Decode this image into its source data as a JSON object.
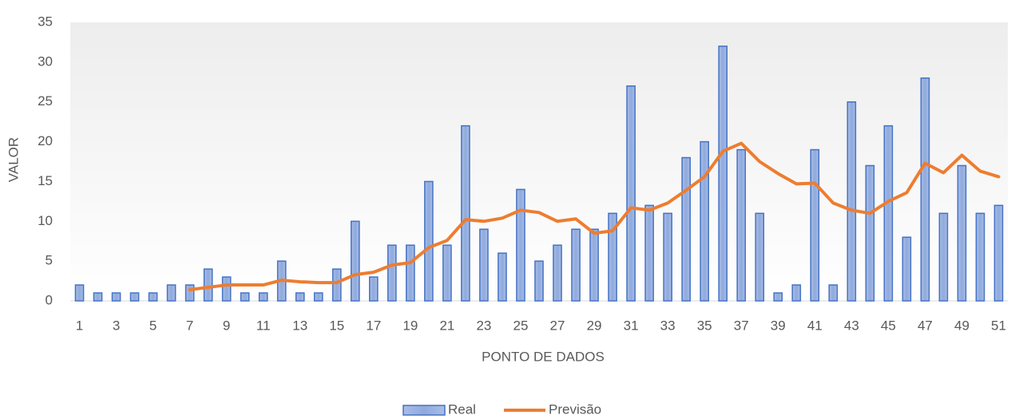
{
  "chart_data": {
    "type": "bar",
    "x_label": "PONTO DE DADOS",
    "y_label": "VALOR",
    "categories": [
      1,
      null,
      3,
      null,
      5,
      null,
      7,
      null,
      9,
      null,
      11,
      null,
      13,
      null,
      15,
      null,
      17,
      null,
      19,
      null,
      21,
      null,
      23,
      null,
      25,
      null,
      27,
      null,
      29,
      null,
      31,
      null,
      33,
      null,
      35,
      null,
      37,
      null,
      39,
      null,
      41,
      null,
      43,
      null,
      45,
      null,
      47,
      null,
      49,
      null,
      51
    ],
    "series": [
      {
        "name": "Real",
        "type": "bar",
        "color": "#4472c4",
        "values": [
          2,
          1,
          1,
          1,
          1,
          2,
          2,
          4,
          3,
          1,
          1,
          5,
          1,
          1,
          4,
          10,
          3,
          7,
          7,
          15,
          7,
          22,
          9,
          6,
          14,
          5,
          7,
          9,
          9,
          11,
          27,
          12,
          11,
          18,
          20,
          32,
          19,
          11,
          1,
          2,
          19,
          2,
          25,
          17,
          22,
          8,
          28,
          11,
          17,
          11,
          12
        ]
      },
      {
        "name": "Previsão",
        "type": "line",
        "color": "#ed7d31",
        "values": [
          null,
          null,
          null,
          null,
          null,
          null,
          1.4,
          1.7,
          2.0,
          2.0,
          2.0,
          2.6,
          2.4,
          2.3,
          2.3,
          3.3,
          3.6,
          4.5,
          4.8,
          6.7,
          7.6,
          10.2,
          10.0,
          10.4,
          11.4,
          11.1,
          10.0,
          10.3,
          8.5,
          8.8,
          11.7,
          11.4,
          12.3,
          13.9,
          15.6,
          18.8,
          19.8,
          17.5,
          16.0,
          14.7,
          14.8,
          12.3,
          11.4,
          11.0,
          12.5,
          13.6,
          17.3,
          16.1,
          18.3,
          16.3,
          15.6
        ]
      }
    ],
    "ylim": [
      0,
      35
    ],
    "yticks": [
      0,
      5,
      10,
      15,
      20,
      25,
      30,
      35
    ],
    "grid": false,
    "legend": "bottom"
  }
}
